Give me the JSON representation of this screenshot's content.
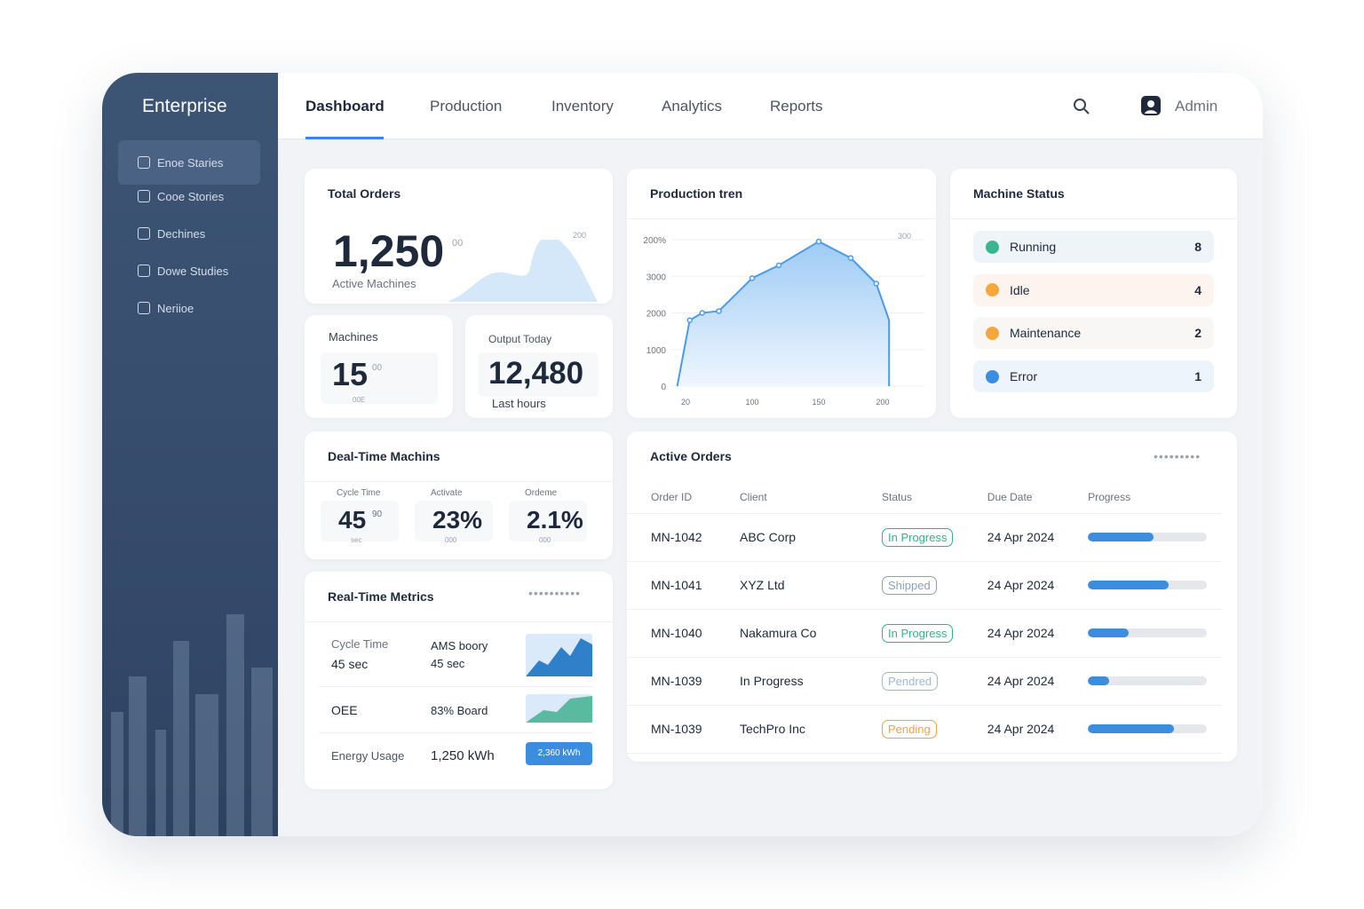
{
  "brand": "Enterprise",
  "sidebar": {
    "items": [
      {
        "label": "Enoe Staries",
        "active": true
      },
      {
        "label": "Cooe Stories"
      },
      {
        "label": "Dechines"
      },
      {
        "label": "Dowe Studies"
      },
      {
        "label": "Neriioe"
      }
    ]
  },
  "header": {
    "tabs": [
      {
        "label": "Dashboard",
        "active": true
      },
      {
        "label": "Production"
      },
      {
        "label": "Inventory"
      },
      {
        "label": "Analytics"
      },
      {
        "label": "Reports"
      }
    ],
    "user": "Admin",
    "icons": [
      "search-icon",
      "user-icon"
    ]
  },
  "total_orders": {
    "title": "Total Orders",
    "value": "1,250",
    "sup": "00",
    "sub": "Active Machines",
    "spark_label": "200"
  },
  "machines": {
    "title": "Machines",
    "value": "15",
    "sup": "00",
    "sub": "00E"
  },
  "output": {
    "title": "Output Today",
    "value": "12,480",
    "sub": "Last hours"
  },
  "realtime_machines": {
    "title": "Deal-Time Machins",
    "items": [
      {
        "label": "Cycle Time",
        "value": "45",
        "sup": "90",
        "sub": "sec"
      },
      {
        "label": "Activate",
        "value": "23%",
        "sub": "000"
      },
      {
        "label": "Ordeme",
        "value": "2.1%",
        "sub": "000"
      }
    ]
  },
  "realtime_metrics": {
    "title": "Real-Time Metrics",
    "rows": [
      {
        "label": "Cycle Time",
        "value": "45 sec",
        "mid_label": "AMS boory",
        "mid": "45 sec"
      },
      {
        "label": "OEE",
        "mid": "83% Board"
      },
      {
        "label": "Energy Usage",
        "mid": "1,250 kWh",
        "chip": "2,360 kWh"
      }
    ]
  },
  "machine_status": {
    "title": "Machine Status",
    "items": [
      {
        "label": "Running",
        "count": "8",
        "color": "#3bb58f",
        "bg": "#eef4f8"
      },
      {
        "label": "Idle",
        "count": "4",
        "color": "#f5a63d",
        "bg": "#fdf3ef"
      },
      {
        "label": "Maintenance",
        "count": "2",
        "color": "#f5a63d",
        "bg": "#f9f7f6"
      },
      {
        "label": "Error",
        "count": "1",
        "color": "#3b8de0",
        "bg": "#edf4fb"
      }
    ]
  },
  "chart_data": {
    "type": "area",
    "title": "Production tren",
    "y_ticks": [
      "0",
      "1000",
      "2000",
      "3000",
      "200%"
    ],
    "x_ticks": [
      "20",
      "100",
      "150",
      "200"
    ],
    "corner_label": "300",
    "ylim": [
      0,
      4000
    ],
    "x": [
      10,
      25,
      40,
      60,
      100,
      120,
      150,
      175,
      195,
      205,
      205
    ],
    "y": [
      0,
      1800,
      2000,
      2050,
      2950,
      3300,
      3950,
      3500,
      2800,
      1800,
      0
    ],
    "color": "#4a9be8",
    "grid": true
  },
  "active_orders": {
    "title": "Active Orders",
    "columns": [
      "Order ID",
      "Client",
      "Status",
      "Due Date",
      "Progress"
    ],
    "rows": [
      {
        "id": "MN-1042",
        "client": "ABC Corp",
        "status": "In Progress",
        "due": "24 Apr 2024",
        "progress": 55
      },
      {
        "id": "MN-1041",
        "client": "XYZ Ltd",
        "status": "Shipped",
        "due": "24 Apr 2024",
        "progress": 68
      },
      {
        "id": "MN-1040",
        "client": "Nakamura Co",
        "status": "In Progress",
        "due": "24 Apr 2024",
        "progress": 34
      },
      {
        "id": "MN-1039",
        "client": "In Progress",
        "status": "Pendred",
        "due": "24 Apr 2024",
        "progress": 18
      },
      {
        "id": "MN-1039",
        "client": "TechPro Inc",
        "status": "Pending",
        "due": "24 Apr 2024",
        "progress": 72
      }
    ]
  },
  "status_colors": {
    "In Progress": "#2fb38a",
    "Shipped": "#8aa3bd",
    "Pendred": "#9db8cf",
    "Pending": "#f5a23a"
  }
}
